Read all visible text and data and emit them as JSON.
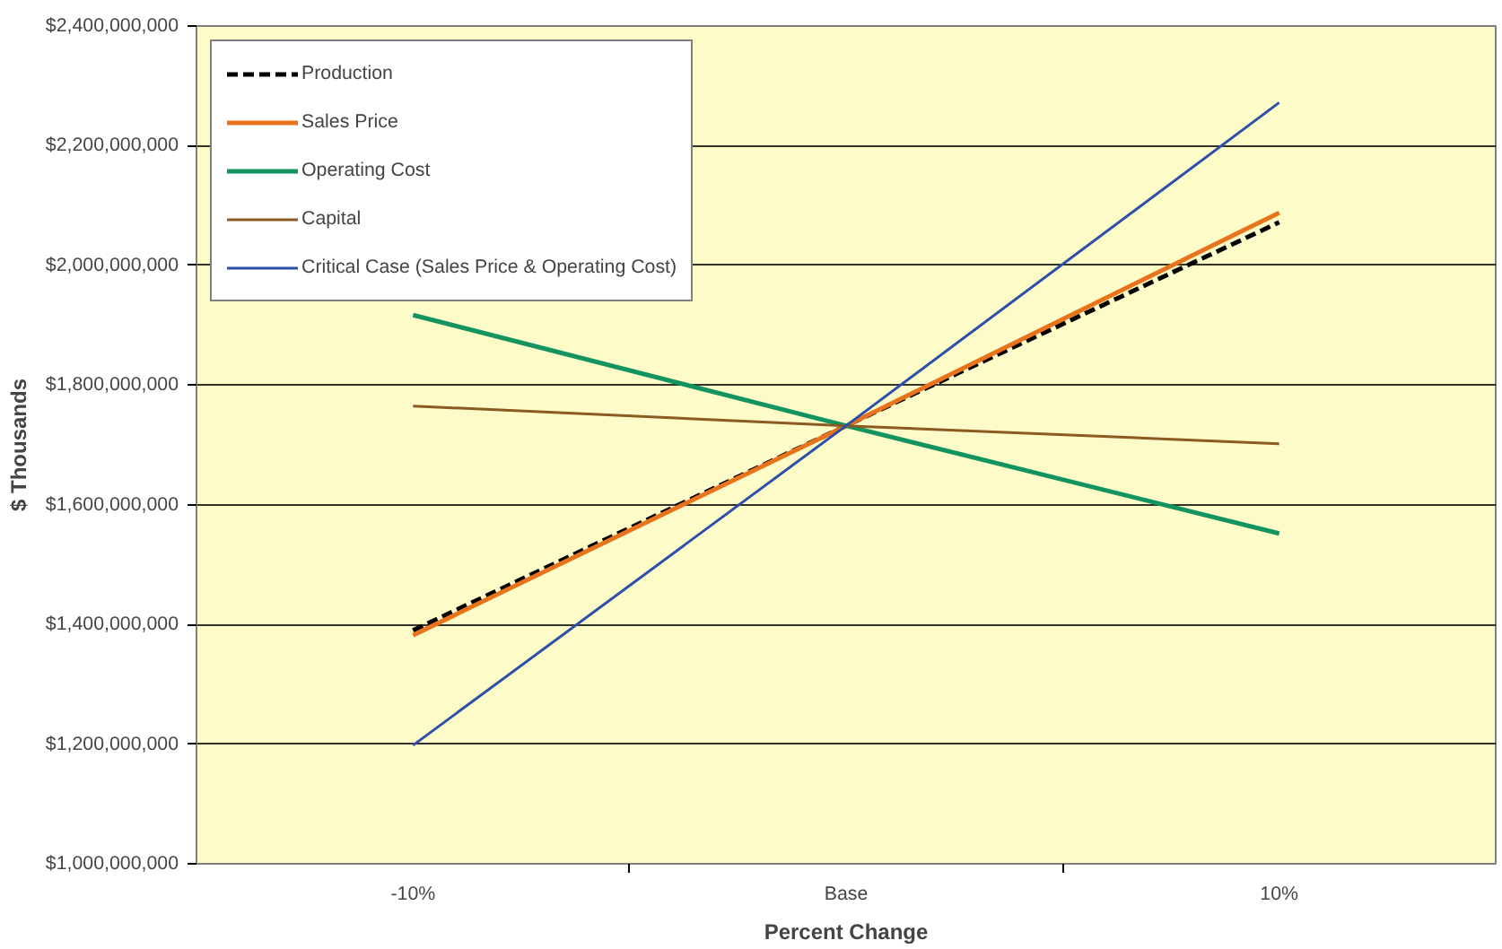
{
  "chart_data": {
    "type": "line",
    "xlabel": "Percent Change",
    "ylabel": "$ Thousands",
    "categories": [
      "-10%",
      "Base",
      "10%"
    ],
    "series": [
      {
        "name": "Production",
        "color": "#000000",
        "line_style": "dashed",
        "values": [
          1390000000,
          1732000000,
          2072000000
        ]
      },
      {
        "name": "Sales Price",
        "color": "#e8731c",
        "values": [
          1382000000,
          1732000000,
          2088000000
        ]
      },
      {
        "name": "Operating Cost",
        "color": "#13935f",
        "values": [
          1917000000,
          1732000000,
          1552000000
        ]
      },
      {
        "name": "Capital",
        "color": "#8b5a22",
        "values": [
          1765000000,
          1732000000,
          1702000000
        ]
      },
      {
        "name": "Critical Case (Sales Price & Operating Cost)",
        "color": "#2b4faa",
        "values": [
          1198000000,
          1732000000,
          2272000000
        ]
      }
    ],
    "ylim": [
      1000000000,
      2400000000
    ],
    "yticks": [
      {
        "value": 1000000000,
        "label": "$1,000,000,000"
      },
      {
        "value": 1200000000,
        "label": "$1,200,000,000"
      },
      {
        "value": 1400000000,
        "label": "$1,400,000,000"
      },
      {
        "value": 1600000000,
        "label": "$1,600,000,000"
      },
      {
        "value": 1800000000,
        "label": "$1,800,000,000"
      },
      {
        "value": 2000000000,
        "label": "$2,000,000,000"
      },
      {
        "value": 2200000000,
        "label": "$2,200,000,000"
      },
      {
        "value": 2400000000,
        "label": "$2,400,000,000"
      }
    ],
    "grid": "y",
    "legend": "top left",
    "marker": "none",
    "line_style": "solid"
  }
}
